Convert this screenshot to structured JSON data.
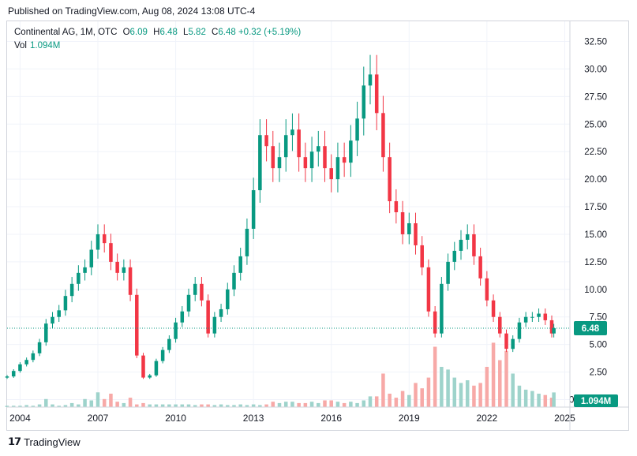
{
  "header": {
    "published": "Published on TradingView.com, Aug 08, 2024 13:08 UTC-4"
  },
  "legend": {
    "symbol": "Continental AG, 1M, OTC",
    "o_label": "O",
    "o": "6.09",
    "h_label": "H",
    "h": "6.48",
    "l_label": "L",
    "l": "5.82",
    "c_label": "C",
    "c": "6.48",
    "change": "+0.32 (+5.19%)",
    "vol_label": "Vol",
    "vol_value": "1.094M"
  },
  "footer": {
    "brand": "TradingView"
  },
  "colors": {
    "up": "#089981",
    "down": "#f23645",
    "vol_up": "#9ed3cb",
    "vol_down": "#f7a9a7",
    "grid": "#f0f3fa",
    "text": "#131722",
    "axis_border": "#d1d4dc"
  },
  "chart_data": {
    "type": "candlestick",
    "title": "Continental AG, 1M, OTC",
    "x_ticks": [
      "2004",
      "2007",
      "2010",
      "2013",
      "2016",
      "2019",
      "2022",
      "2025"
    ],
    "y_ticks": [
      "32.50",
      "30.00",
      "27.50",
      "25.00",
      "22.50",
      "20.00",
      "17.50",
      "15.00",
      "12.50",
      "10.00",
      "7.50",
      "5.00",
      "2.50",
      "0.000000"
    ],
    "ylim": [
      0,
      32.5
    ],
    "xlim": [
      2003.5,
      2025.2
    ],
    "last_price_label": "6.48",
    "last_volume_label": "1.094M",
    "grid": true,
    "series": [
      {
        "name": "price",
        "x": [
          2003.5,
          2003.75,
          2004.0,
          2004.25,
          2004.5,
          2004.75,
          2005.0,
          2005.25,
          2005.5,
          2005.75,
          2006.0,
          2006.25,
          2006.5,
          2006.75,
          2007.0,
          2007.25,
          2007.5,
          2007.75,
          2008.0,
          2008.25,
          2008.5,
          2008.75,
          2009.0,
          2009.25,
          2009.5,
          2009.75,
          2010.0,
          2010.25,
          2010.5,
          2010.75,
          2011.0,
          2011.25,
          2011.5,
          2011.75,
          2012.0,
          2012.25,
          2012.5,
          2012.75,
          2013.0,
          2013.25,
          2013.5,
          2013.75,
          2014.0,
          2014.25,
          2014.5,
          2014.75,
          2015.0,
          2015.25,
          2015.5,
          2015.75,
          2016.0,
          2016.25,
          2016.5,
          2016.75,
          2017.0,
          2017.25,
          2017.5,
          2017.75,
          2018.0,
          2018.25,
          2018.5,
          2018.75,
          2019.0,
          2019.25,
          2019.5,
          2019.75,
          2020.0,
          2020.25,
          2020.5,
          2020.75,
          2021.0,
          2021.25,
          2021.5,
          2021.75,
          2022.0,
          2022.25,
          2022.5,
          2022.75,
          2023.0,
          2023.25,
          2023.5,
          2023.75,
          2024.0,
          2024.25,
          2024.5,
          2024.58
        ],
        "values": [
          2.1,
          2.6,
          3.2,
          3.6,
          4.2,
          5.2,
          6.9,
          7.5,
          8.1,
          9.4,
          10.5,
          11.5,
          12.0,
          13.6,
          15.0,
          14.2,
          12.5,
          11.5,
          12.0,
          9.5,
          4.0,
          2.0,
          2.2,
          3.5,
          4.5,
          5.5,
          7.0,
          8.0,
          9.5,
          10.5,
          9.0,
          6.0,
          7.5,
          8.2,
          10.0,
          11.5,
          13.0,
          15.5,
          19.0,
          24.0,
          23.0,
          21.0,
          22.0,
          24.0,
          24.5,
          22.0,
          21.0,
          22.5,
          23.0,
          21.0,
          20.0,
          22.0,
          21.5,
          23.5,
          25.5,
          28.5,
          29.5,
          26.0,
          22.0,
          18.0,
          17.0,
          15.0,
          16.0,
          14.0,
          12.0,
          8.0,
          6.0,
          10.5,
          12.5,
          13.5,
          14.5,
          15.0,
          13.0,
          11.0,
          9.0,
          7.5,
          6.0,
          4.6,
          5.5,
          7.0,
          7.5,
          7.5,
          7.8,
          7.2,
          6.0,
          6.48
        ]
      }
    ],
    "volume": {
      "name": "Vol",
      "values": [
        0.1,
        0.1,
        0.1,
        0.15,
        0.1,
        0.2,
        0.6,
        0.2,
        0.1,
        0.15,
        0.3,
        0.2,
        0.6,
        0.5,
        1.1,
        0.6,
        1.0,
        0.4,
        0.3,
        0.7,
        0.2,
        0.3,
        0.2,
        0.2,
        0.2,
        0.2,
        0.2,
        0.2,
        0.2,
        0.15,
        0.2,
        0.2,
        0.15,
        0.2,
        0.15,
        0.15,
        0.2,
        0.15,
        0.2,
        0.15,
        0.2,
        0.4,
        0.3,
        0.4,
        0.4,
        0.3,
        0.3,
        0.4,
        0.3,
        0.5,
        0.5,
        0.4,
        0.3,
        0.4,
        0.3,
        0.5,
        0.8,
        0.8,
        2.5,
        1.0,
        0.7,
        1.2,
        0.9,
        1.8,
        1.4,
        2.2,
        4.5,
        3.0,
        2.8,
        2.2,
        1.8,
        2.0,
        1.6,
        1.8,
        3.0,
        4.8,
        3.5,
        4.2,
        2.5,
        1.6,
        1.3,
        1.2,
        1.0,
        0.9,
        0.7,
        1.094
      ],
      "ylim": [
        0,
        5
      ]
    }
  }
}
